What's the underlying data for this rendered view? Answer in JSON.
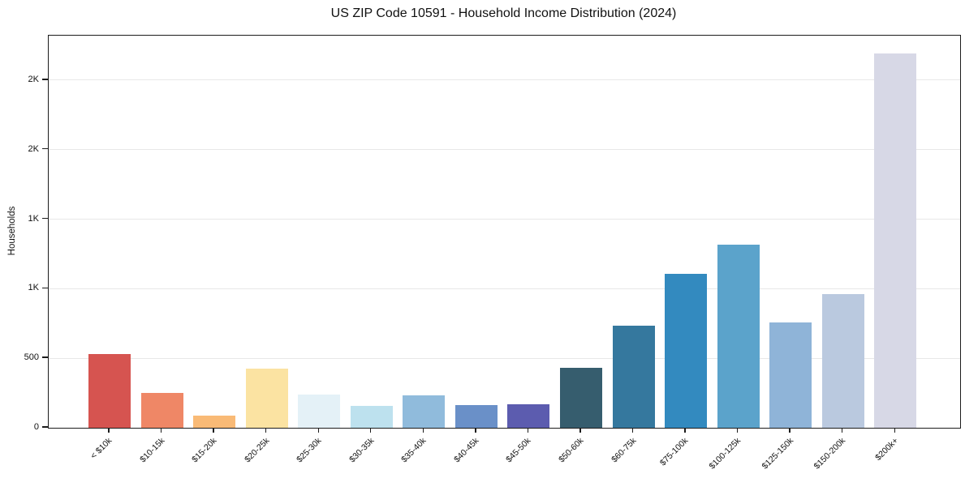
{
  "chart_data": {
    "type": "bar",
    "title": "US ZIP Code 10591 - Household Income Distribution (2024)",
    "xlabel": "",
    "ylabel": "Households",
    "ylim": [
      0,
      2820
    ],
    "grid": "horizontal",
    "legend": "none",
    "yticks": [
      {
        "value": 0,
        "label": "0"
      },
      {
        "value": 500,
        "label": "500"
      },
      {
        "value": 1000,
        "label": "1K"
      },
      {
        "value": 1500,
        "label": "1K"
      },
      {
        "value": 2000,
        "label": "2K"
      },
      {
        "value": 2500,
        "label": "2K"
      }
    ],
    "categories": [
      "< $10k",
      "$10-15k",
      "$15-20k",
      "$20-25k",
      "$25-30k",
      "$30-35k",
      "$35-40k",
      "$40-45k",
      "$45-50k",
      "$50-60k",
      "$60-75k",
      "$75-100k",
      "$100-125k",
      "$125-150k",
      "$150-200k",
      "$200k+"
    ],
    "values": [
      530,
      250,
      90,
      425,
      240,
      160,
      235,
      165,
      170,
      430,
      735,
      1110,
      1315,
      755,
      960,
      2690
    ],
    "bar_colors": [
      "#d65450",
      "#ef8766",
      "#f9ba76",
      "#fbe3a2",
      "#e4f1f7",
      "#bde1ee",
      "#90bbdc",
      "#6a90c8",
      "#5c5caf",
      "#365d6e",
      "#35789e",
      "#338abf",
      "#5ba3cb",
      "#8fb4d8",
      "#bac9df",
      "#d7d8e6"
    ]
  },
  "colors": {
    "background": "#ffffff",
    "spine": "#1c1c1c",
    "grid": "#e8e8e8",
    "text": "#111111"
  }
}
